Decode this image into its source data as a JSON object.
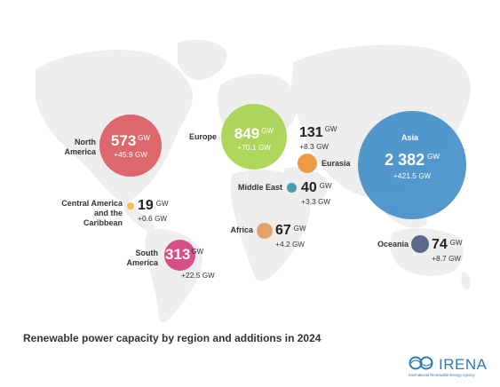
{
  "title": "Renewable power capacity by region and additions in 2024",
  "unit": "GW",
  "logo": {
    "name": "IRENA",
    "subtitle": "International Renewable Energy Agency"
  },
  "colors": {
    "north_america": "#d9545a",
    "europe": "#a4d147",
    "asia": "#3b8bc6",
    "eurasia": "#f19a44",
    "middle_east": "#4b9bb0",
    "central_america": "#f6c24a",
    "south_america": "#d94f83",
    "africa": "#e2a26a",
    "oceania": "#5a6a86",
    "map": "#eeeeee",
    "logo": "#2a7ab9"
  },
  "regions": [
    {
      "id": "north_america",
      "name": "North America",
      "capacity": "573",
      "addition": "+45.9"
    },
    {
      "id": "europe",
      "name": "Europe",
      "capacity": "849",
      "addition": "+70.1"
    },
    {
      "id": "asia",
      "name": "Asia",
      "capacity": "2 382",
      "addition": "+421.5"
    },
    {
      "id": "eurasia",
      "name": "Eurasia",
      "capacity": "131",
      "addition": "+8.3"
    },
    {
      "id": "middle_east",
      "name": "Middle East",
      "capacity": "40",
      "addition": "+3.3"
    },
    {
      "id": "central_america",
      "name": "Central America and the Caribbean",
      "capacity": "19",
      "addition": "+0.6"
    },
    {
      "id": "south_america",
      "name": "South America",
      "capacity": "313",
      "addition": "+22.5"
    },
    {
      "id": "africa",
      "name": "Africa",
      "capacity": "67",
      "addition": "+4.2"
    },
    {
      "id": "oceania",
      "name": "Oceania",
      "capacity": "74",
      "addition": "+8.7"
    }
  ]
}
